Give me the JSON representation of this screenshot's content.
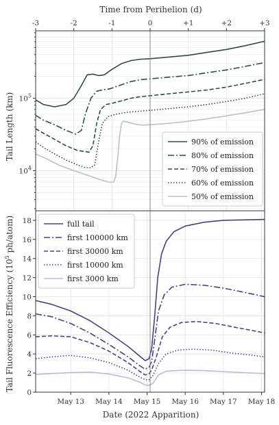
{
  "chart_data": [
    {
      "type": "line",
      "panel": "top",
      "xlabel": "Time from Perihelion (d)",
      "x_ticks": [
        -3,
        -2,
        -1,
        0,
        1,
        2,
        3
      ],
      "x_tick_labels": [
        "-3",
        "-2",
        "-1",
        "0",
        "+1",
        "+2",
        "+3"
      ],
      "ylabel": "Tail Length (km)",
      "yscale": "log",
      "ylim": [
        2800,
        850000
      ],
      "y_ticks": [
        10000,
        100000
      ],
      "y_tick_labels": [
        "10^4",
        "10^5"
      ],
      "legend_placement": "lower-right",
      "grid": true,
      "series": [
        {
          "name": "90% of emission",
          "dash": "solid",
          "color": "#2e4a47",
          "points": [
            [
              -3,
              95000
            ],
            [
              -2.8,
              82000
            ],
            [
              -2.5,
              76000
            ],
            [
              -2.2,
              82000
            ],
            [
              -2,
              100000
            ],
            [
              -1.8,
              150000
            ],
            [
              -1.65,
              210000
            ],
            [
              -1.5,
              215000
            ],
            [
              -1.35,
              205000
            ],
            [
              -1.2,
              210000
            ],
            [
              -1,
              250000
            ],
            [
              -0.75,
              300000
            ],
            [
              -0.5,
              330000
            ],
            [
              -0.25,
              345000
            ],
            [
              0,
              350000
            ],
            [
              0.5,
              370000
            ],
            [
              1,
              390000
            ],
            [
              1.5,
              430000
            ],
            [
              2,
              470000
            ],
            [
              2.5,
              530000
            ],
            [
              3,
              610000
            ]
          ]
        },
        {
          "name": "80% of emission",
          "dash": "dashdot",
          "color": "#2e4a47",
          "points": [
            [
              -3,
              58000
            ],
            [
              -2.8,
              50000
            ],
            [
              -2.5,
              43000
            ],
            [
              -2.2,
              36000
            ],
            [
              -1.95,
              32000
            ],
            [
              -1.8,
              36000
            ],
            [
              -1.7,
              60000
            ],
            [
              -1.55,
              100000
            ],
            [
              -1.4,
              125000
            ],
            [
              -1.25,
              130000
            ],
            [
              -1.05,
              135000
            ],
            [
              -0.8,
              150000
            ],
            [
              -0.5,
              170000
            ],
            [
              -0.25,
              180000
            ],
            [
              0,
              185000
            ],
            [
              0.5,
              195000
            ],
            [
              1,
              205000
            ],
            [
              1.5,
              225000
            ],
            [
              2,
              245000
            ],
            [
              2.5,
              275000
            ],
            [
              3,
              310000
            ]
          ]
        },
        {
          "name": "70% of emission",
          "dash": "dashed",
          "color": "#2e4a47",
          "points": [
            [
              -3,
              38000
            ],
            [
              -2.8,
              33000
            ],
            [
              -2.5,
              27000
            ],
            [
              -2.2,
              22000
            ],
            [
              -1.9,
              19000
            ],
            [
              -1.6,
              18000
            ],
            [
              -1.5,
              22000
            ],
            [
              -1.4,
              45000
            ],
            [
              -1.3,
              70000
            ],
            [
              -1.15,
              82000
            ],
            [
              -1,
              85000
            ],
            [
              -0.75,
              92000
            ],
            [
              -0.5,
              100000
            ],
            [
              -0.25,
              105000
            ],
            [
              0,
              108000
            ],
            [
              0.5,
              115000
            ],
            [
              1,
              122000
            ],
            [
              1.5,
              130000
            ],
            [
              2,
              142000
            ],
            [
              2.5,
              160000
            ],
            [
              3,
              182000
            ]
          ]
        },
        {
          "name": "60% of emission",
          "dash": "dotted",
          "color": "#2e4a47",
          "points": [
            [
              -3,
              25000
            ],
            [
              -2.8,
              21000
            ],
            [
              -2.5,
              17000
            ],
            [
              -2.2,
              14000
            ],
            [
              -1.9,
              12000
            ],
            [
              -1.7,
              11000
            ],
            [
              -1.55,
              11000
            ],
            [
              -1.45,
              12000
            ],
            [
              -1.35,
              25000
            ],
            [
              -1.25,
              45000
            ],
            [
              -1.1,
              56000
            ],
            [
              -0.9,
              60000
            ],
            [
              -0.6,
              64000
            ],
            [
              -0.3,
              66000
            ],
            [
              0,
              68000
            ],
            [
              0.5,
              72000
            ],
            [
              1,
              76000
            ],
            [
              1.5,
              82000
            ],
            [
              2,
              90000
            ],
            [
              2.5,
              100000
            ],
            [
              3,
              115000
            ]
          ]
        },
        {
          "name": "50% of emission",
          "dash": "solid",
          "color": "#b8c4c2",
          "points": [
            [
              -3,
              17000
            ],
            [
              -2.7,
              14500
            ],
            [
              -2.4,
              12000
            ],
            [
              -2,
              10000
            ],
            [
              -1.6,
              8500
            ],
            [
              -1.3,
              7500
            ],
            [
              -1.05,
              6900
            ],
            [
              -0.95,
              7000
            ],
            [
              -0.9,
              8500
            ],
            [
              -0.85,
              15000
            ],
            [
              -0.8,
              30000
            ],
            [
              -0.75,
              45000
            ],
            [
              -0.7,
              48000
            ],
            [
              -0.6,
              47000
            ],
            [
              -0.4,
              44000
            ],
            [
              -0.2,
              42500
            ],
            [
              0,
              43000
            ],
            [
              0.5,
              45000
            ],
            [
              1,
              48000
            ],
            [
              1.5,
              52000
            ],
            [
              2,
              57000
            ],
            [
              2.5,
              63000
            ],
            [
              3,
              70000
            ]
          ]
        }
      ]
    },
    {
      "type": "line",
      "panel": "bottom",
      "xlabel": "Date (2022 Apparition)",
      "x_ticks": [
        13,
        14,
        15,
        16,
        17,
        18
      ],
      "x_tick_labels": [
        "May 13",
        "May 14",
        "May 15",
        "May 16",
        "May 17",
        "May 18"
      ],
      "xlim": [
        12.08,
        18.08
      ],
      "ylabel": "Tail Fluorescence Efficiency (10^5 ph/atom)",
      "ylim": [
        0,
        19
      ],
      "y_ticks": [
        0,
        2,
        4,
        6,
        8,
        10,
        12,
        14,
        16,
        18
      ],
      "legend_placement": "upper-left",
      "grid": true,
      "series": [
        {
          "name": "full tail",
          "dash": "solid",
          "color": "#4a3f85",
          "points": [
            [
              12.08,
              9.6
            ],
            [
              12.5,
              9.2
            ],
            [
              13,
              8.5
            ],
            [
              13.5,
              7.5
            ],
            [
              14,
              6.2
            ],
            [
              14.5,
              4.8
            ],
            [
              14.8,
              3.8
            ],
            [
              14.95,
              3.3
            ],
            [
              15.05,
              3.5
            ],
            [
              15.12,
              4.5
            ],
            [
              15.2,
              8
            ],
            [
              15.28,
              12
            ],
            [
              15.38,
              14.5
            ],
            [
              15.5,
              15.8
            ],
            [
              15.7,
              16.8
            ],
            [
              16,
              17.4
            ],
            [
              16.5,
              17.8
            ],
            [
              17,
              18
            ],
            [
              17.5,
              18.05
            ],
            [
              18.08,
              18.1
            ]
          ]
        },
        {
          "name": "first 100000 km",
          "dash": "dashdot",
          "color": "#4a3f85",
          "points": [
            [
              12.08,
              8.2
            ],
            [
              12.5,
              7.9
            ],
            [
              13,
              7.2
            ],
            [
              13.5,
              6.2
            ],
            [
              14,
              5
            ],
            [
              14.5,
              3.7
            ],
            [
              14.8,
              2.8
            ],
            [
              14.95,
              2.4
            ],
            [
              15.05,
              2.6
            ],
            [
              15.12,
              3.2
            ],
            [
              15.2,
              5.5
            ],
            [
              15.3,
              8.5
            ],
            [
              15.45,
              10.2
            ],
            [
              15.65,
              11
            ],
            [
              16,
              11.3
            ],
            [
              16.5,
              11.2
            ],
            [
              17,
              10.9
            ],
            [
              17.5,
              10.5
            ],
            [
              18.08,
              10
            ]
          ]
        },
        {
          "name": "first 30000 km",
          "dash": "dashed",
          "color": "#4a3f85",
          "points": [
            [
              12.08,
              5.8
            ],
            [
              12.5,
              5.9
            ],
            [
              13,
              5.8
            ],
            [
              13.5,
              5.2
            ],
            [
              14,
              4.3
            ],
            [
              14.5,
              3.1
            ],
            [
              14.8,
              2.2
            ],
            [
              14.95,
              1.8
            ],
            [
              15.05,
              1.9
            ],
            [
              15.12,
              2.3
            ],
            [
              15.25,
              3.8
            ],
            [
              15.4,
              5.8
            ],
            [
              15.6,
              6.8
            ],
            [
              15.9,
              7.3
            ],
            [
              16.3,
              7.4
            ],
            [
              16.8,
              7.2
            ],
            [
              17.3,
              6.8
            ],
            [
              17.7,
              6.5
            ],
            [
              18.08,
              6.2
            ]
          ]
        },
        {
          "name": "first 10000 km",
          "dash": "dotted",
          "color": "#4a3f85",
          "points": [
            [
              12.08,
              3.5
            ],
            [
              12.5,
              3.7
            ],
            [
              13,
              3.85
            ],
            [
              13.5,
              3.6
            ],
            [
              14,
              3.1
            ],
            [
              14.5,
              2.3
            ],
            [
              14.8,
              1.6
            ],
            [
              14.95,
              1.3
            ],
            [
              15.05,
              1.3
            ],
            [
              15.15,
              1.7
            ],
            [
              15.3,
              3
            ],
            [
              15.5,
              4
            ],
            [
              15.8,
              4.4
            ],
            [
              16.2,
              4.5
            ],
            [
              16.7,
              4.4
            ],
            [
              17.2,
              4.1
            ],
            [
              17.7,
              3.9
            ],
            [
              18.08,
              3.7
            ]
          ]
        },
        {
          "name": "first 3000 km",
          "dash": "solid",
          "color": "#bdb8d9",
          "points": [
            [
              12.08,
              1.85
            ],
            [
              12.5,
              1.95
            ],
            [
              13,
              2.05
            ],
            [
              13.5,
              2.1
            ],
            [
              14,
              1.9
            ],
            [
              14.5,
              1.5
            ],
            [
              14.8,
              1.05
            ],
            [
              14.95,
              0.75
            ],
            [
              15.05,
              0.7
            ],
            [
              15.15,
              0.9
            ],
            [
              15.3,
              1.8
            ],
            [
              15.5,
              2.2
            ],
            [
              16,
              2.3
            ],
            [
              16.5,
              2.25
            ],
            [
              17,
              2.15
            ],
            [
              17.5,
              2.05
            ],
            [
              18.08,
              1.95
            ]
          ]
        }
      ]
    }
  ]
}
